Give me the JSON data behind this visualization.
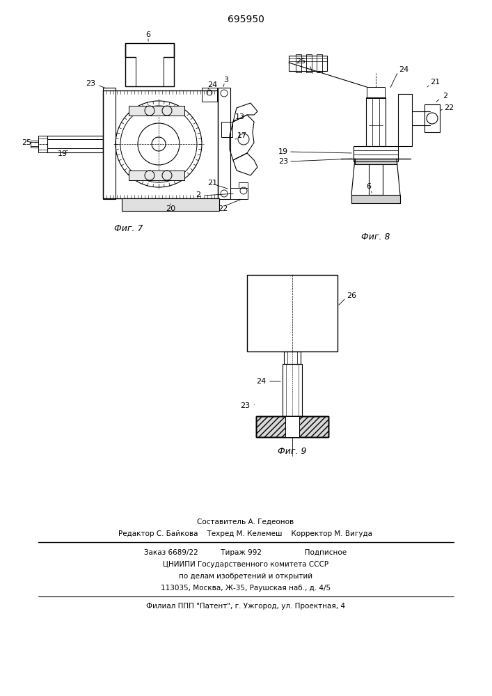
{
  "patent_number": "695950",
  "background_color": "#ffffff",
  "line_color": "#000000",
  "fig_width": 7.07,
  "fig_height": 10.0,
  "dpi": 100,
  "footer_lines": [
    "Составитель А. Гедеонов",
    "Редактор С. Байкова    Техред М. Келемеш    Корректор М. Вигуда",
    "Заказ 6689/22          Тираж 992                   Подписное",
    "ЦНИИПИ Государственного комитета СССР",
    "по делам изобретений и открытий",
    "113035, Москва, Ж-35, Раушская наб., д. 4/5",
    "Филиал ППП \"Патент\", г. Ужгород, ул. Проектная, 4"
  ],
  "fig7_caption": "Фиг. 7",
  "fig8_caption": "Фиг. 8",
  "fig9_caption": "Фиг. 9"
}
